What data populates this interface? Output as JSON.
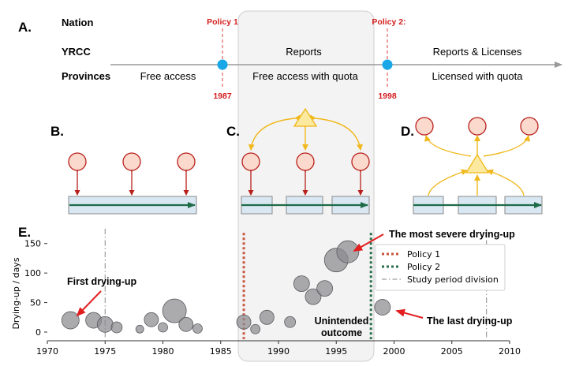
{
  "panel_a": {
    "letter": "A.",
    "rows": [
      "Nation",
      "YRCC",
      "Provinces"
    ],
    "policy1": {
      "label": "Policy 1",
      "year": "1987"
    },
    "policy2": {
      "label": "Policy 2:",
      "year": "1998"
    },
    "segments": [
      {
        "top": "",
        "bottom": "Free access"
      },
      {
        "top": "Reports",
        "bottom": "Free access with quota"
      },
      {
        "top": "Reports & Licenses",
        "bottom": "Licensed with quota"
      }
    ]
  },
  "panel_b": {
    "letter": "B."
  },
  "panel_c": {
    "letter": "C."
  },
  "panel_d": {
    "letter": "D."
  },
  "panel_e": {
    "letter": "E."
  },
  "colors": {
    "accent_blue": "#1aa7e8",
    "policy_red": "#d42020",
    "node_fill": "#fbd9cc",
    "node_stroke": "#b8201c",
    "tri_fill": "#fbe9a0",
    "tri_stroke": "#f0b81c",
    "bar_fill": "#d8e7f2",
    "river_green": "#1e6b48",
    "bubble": "#8a8a8f",
    "policy1_line": "#c8553d",
    "policy2_line": "#2a6e4a"
  },
  "chart_data": {
    "type": "scatter",
    "ylabel": "Drying-up / days",
    "xlim": [
      1970,
      2010
    ],
    "ylim": [
      -8,
      175
    ],
    "xticks": [
      1970,
      1975,
      1980,
      1985,
      1990,
      1995,
      2000,
      2005,
      2010
    ],
    "yticks": [
      0,
      50,
      100,
      150
    ],
    "points": [
      {
        "x": 1972,
        "y": 20,
        "size": 11
      },
      {
        "x": 1974,
        "y": 20,
        "size": 10
      },
      {
        "x": 1975,
        "y": 13,
        "size": 10
      },
      {
        "x": 1976,
        "y": 8,
        "size": 7
      },
      {
        "x": 1978,
        "y": 5,
        "size": 5
      },
      {
        "x": 1979,
        "y": 21,
        "size": 9
      },
      {
        "x": 1980,
        "y": 8,
        "size": 6
      },
      {
        "x": 1981,
        "y": 36,
        "size": 15
      },
      {
        "x": 1982,
        "y": 13,
        "size": 9
      },
      {
        "x": 1983,
        "y": 6,
        "size": 6
      },
      {
        "x": 1987,
        "y": 17,
        "size": 9
      },
      {
        "x": 1988,
        "y": 5,
        "size": 6
      },
      {
        "x": 1989,
        "y": 25,
        "size": 9
      },
      {
        "x": 1991,
        "y": 17,
        "size": 7
      },
      {
        "x": 1992,
        "y": 82,
        "size": 10
      },
      {
        "x": 1993,
        "y": 60,
        "size": 10
      },
      {
        "x": 1994,
        "y": 74,
        "size": 10
      },
      {
        "x": 1995,
        "y": 122,
        "size": 15
      },
      {
        "x": 1996,
        "y": 136,
        "size": 14
      },
      {
        "x": 1999,
        "y": 42,
        "size": 10
      }
    ],
    "vlines": [
      {
        "name": "Policy 1",
        "x": 1987,
        "style": "dotted",
        "color": "#c8553d"
      },
      {
        "name": "Policy 2",
        "x": 1998,
        "style": "dotted",
        "color": "#2a6e4a"
      },
      {
        "name": "Study period division",
        "x": 1975,
        "style": "dashdot",
        "color": "#888888"
      },
      {
        "name": "",
        "x": 2008,
        "style": "dashdot",
        "color": "#888888"
      }
    ],
    "legend": {
      "position": "right",
      "entries": [
        "Policy 1",
        "Policy 2",
        "Study period division"
      ]
    },
    "annotations": {
      "first": "First drying-up",
      "severe": "The most severe drying-up",
      "unintended_1": "Unintended",
      "unintended_2": "outcome",
      "last": "The last drying-up"
    }
  }
}
